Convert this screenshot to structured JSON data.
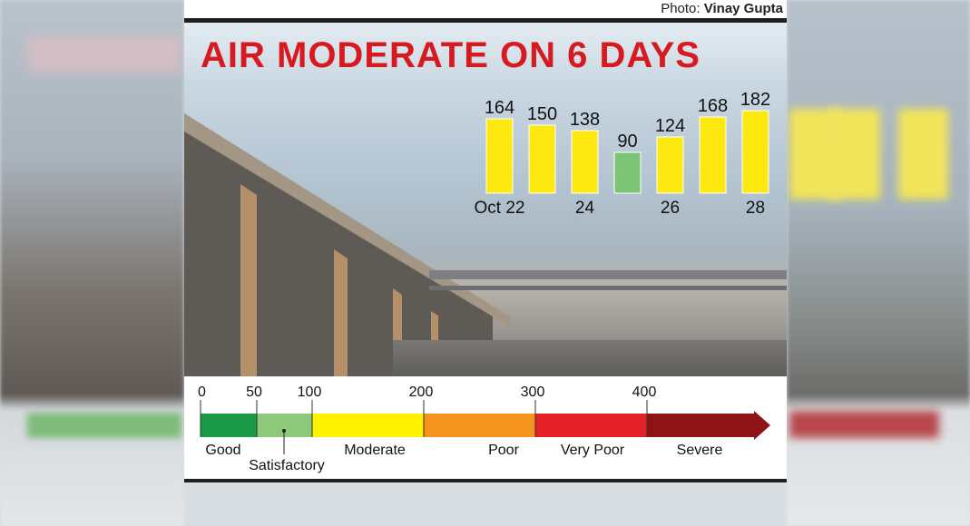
{
  "credit": {
    "prefix": "Photo:",
    "name": "Vinay Gupta"
  },
  "headline": "AIR MODERATE ON 6 DAYS",
  "chart_data": [
    {
      "type": "bar",
      "categories": [
        "Oct 22",
        "",
        "24",
        "",
        "26",
        "",
        "28"
      ],
      "values": [
        164,
        150,
        138,
        90,
        124,
        168,
        182
      ],
      "bar_colors": [
        "#fde910",
        "#fde910",
        "#fde910",
        "#7cc576",
        "#fde910",
        "#fde910",
        "#fde910"
      ],
      "title": "",
      "xlabel": "",
      "ylabel": "",
      "ylim": [
        0,
        200
      ],
      "grid": false
    },
    {
      "type": "scale",
      "ticks": [
        0,
        50,
        100,
        200,
        300,
        400
      ],
      "bands": [
        {
          "label": "Good",
          "from": 0,
          "to": 50,
          "color": "#1a9a46"
        },
        {
          "label": "Satisfactory",
          "from": 50,
          "to": 100,
          "color": "#8cc97a"
        },
        {
          "label": "Moderate",
          "from": 100,
          "to": 200,
          "color": "#fef200"
        },
        {
          "label": "Poor",
          "from": 200,
          "to": 300,
          "color": "#f4931e"
        },
        {
          "label": "Very Poor",
          "from": 300,
          "to": 400,
          "color": "#e52128"
        },
        {
          "label": "Severe",
          "from": 400,
          "to": 500,
          "color": "#8e1316"
        }
      ]
    }
  ]
}
